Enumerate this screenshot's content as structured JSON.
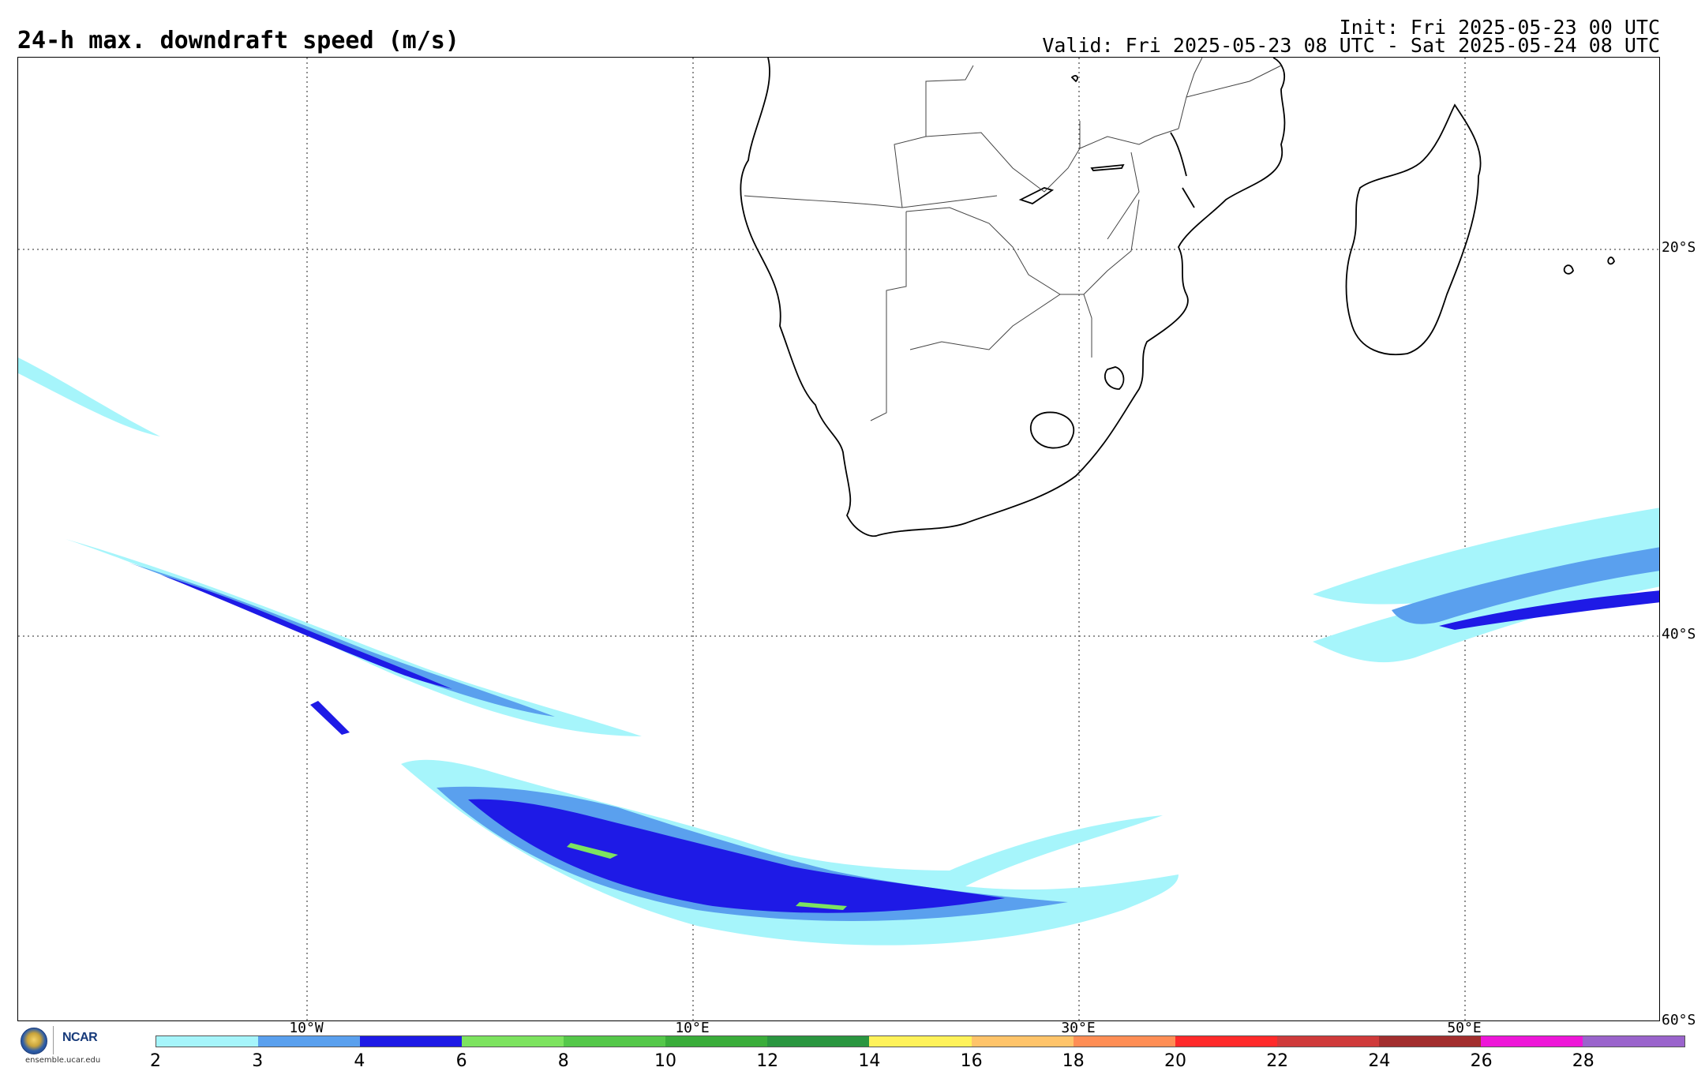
{
  "header": {
    "title": "24-h max. downdraft speed (m/s)",
    "init": "Init: Fri 2025-05-23 00 UTC",
    "valid": "Valid: Fri 2025-05-23 08 UTC - Sat 2025-05-24 08 UTC"
  },
  "map": {
    "lat_labels": [
      "20°S",
      "40°S",
      "60°S"
    ],
    "lon_labels": [
      "10°W",
      "10°E",
      "30°E",
      "50°E"
    ],
    "colors": {
      "land_border": "#000000",
      "grid": "#555555"
    }
  },
  "branding": {
    "org": "NCAR",
    "url": "ensemble.ucar.edu",
    "icons": [
      "nsf-logo-icon",
      "ncar-logo-icon"
    ]
  },
  "colorbar": {
    "ticks": [
      "2",
      "3",
      "4",
      "6",
      "8",
      "10",
      "12",
      "14",
      "16",
      "18",
      "20",
      "22",
      "24",
      "26",
      "28"
    ],
    "colors": [
      "#a6f5fb",
      "#5aa0ee",
      "#1e1ae6",
      "#7de35f",
      "#55c84a",
      "#3aad3a",
      "#2a9640",
      "#fff25a",
      "#ffc46a",
      "#ff8e55",
      "#ff2a2a",
      "#cf3a3a",
      "#a22e2e",
      "#ee16d8",
      "#9a64cc"
    ]
  }
}
